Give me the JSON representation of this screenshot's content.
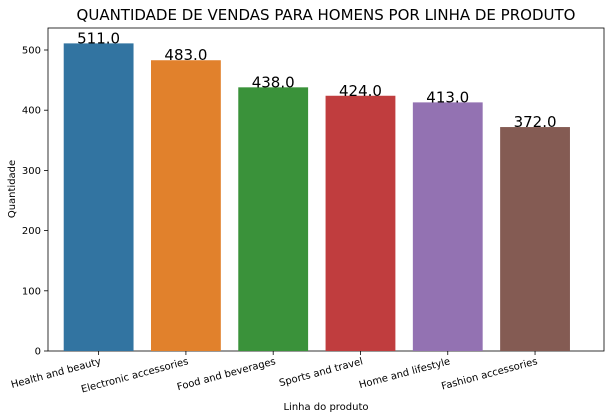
{
  "chart_data": {
    "type": "bar",
    "title": "QUANTIDADE DE VENDAS PARA HOMENS POR LINHA DE PRODUTO",
    "xlabel": "Linha do produto",
    "ylabel": "Quantidade",
    "categories": [
      "Health and beauty",
      "Electronic accessories",
      "Food and beverages",
      "Sports and travel",
      "Home and lifestyle",
      "Fashion accessories"
    ],
    "values": [
      511,
      483,
      438,
      424,
      413,
      372
    ],
    "data_labels": [
      "511.0",
      "483.0",
      "438.0",
      "424.0",
      "413.0",
      "372.0"
    ],
    "colors": [
      "#3274a1",
      "#e1812c",
      "#3a923a",
      "#c03d3e",
      "#9372b2",
      "#845b53"
    ],
    "yticks": [
      0,
      100,
      200,
      300,
      400,
      500
    ],
    "ylim": [
      0,
      536.55
    ],
    "grid": false,
    "legend": "none"
  }
}
